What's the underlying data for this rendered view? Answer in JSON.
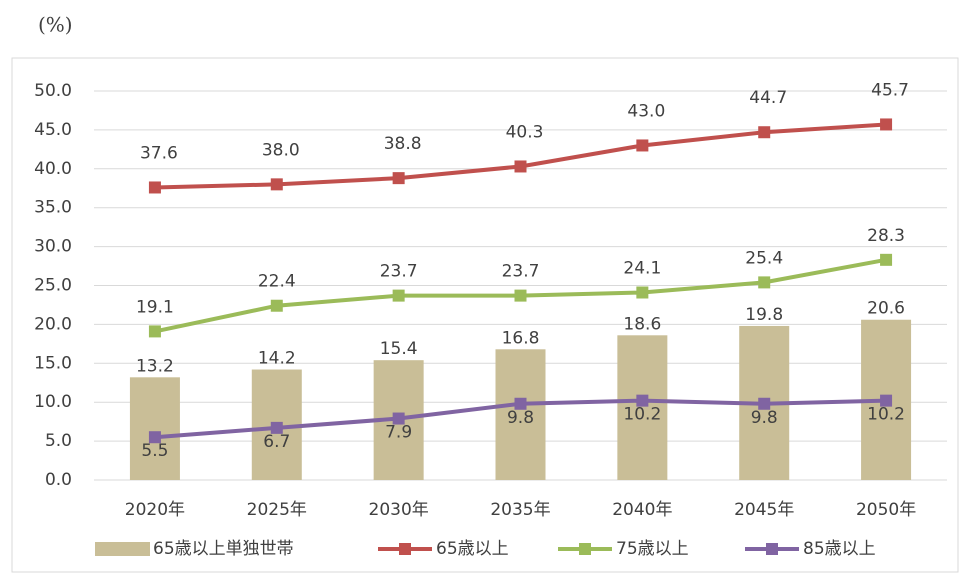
{
  "chart_data": {
    "type": "combo",
    "y_label": "(%)",
    "categories": [
      "2020年",
      "2025年",
      "2030年",
      "2035年",
      "2040年",
      "2045年",
      "2050年"
    ],
    "ylim": [
      0,
      50
    ],
    "yticks": [
      {
        "value": 0,
        "label": "0.0"
      },
      {
        "value": 5,
        "label": "5.0"
      },
      {
        "value": 10,
        "label": "10.0"
      },
      {
        "value": 15,
        "label": "15.0"
      },
      {
        "value": 20,
        "label": "20.0"
      },
      {
        "value": 25,
        "label": "25.0"
      },
      {
        "value": 30,
        "label": "30.0"
      },
      {
        "value": 35,
        "label": "35.0"
      },
      {
        "value": 40,
        "label": "40.0"
      },
      {
        "value": 45,
        "label": "45.0"
      },
      {
        "value": 50,
        "label": "50.0"
      }
    ],
    "grid": true,
    "series": [
      {
        "name": "65歳以上単独世帯",
        "type": "bar",
        "color": "#c9be97",
        "values": [
          13.2,
          14.2,
          15.4,
          16.8,
          18.6,
          19.8,
          20.6
        ],
        "value_labels": [
          "13.2",
          "14.2",
          "15.4",
          "16.8",
          "18.6",
          "19.8",
          "20.6"
        ]
      },
      {
        "name": "65歳以上",
        "type": "line",
        "color": "#c0504d",
        "values": [
          37.6,
          38.0,
          38.8,
          40.3,
          43.0,
          44.7,
          45.7
        ],
        "value_labels": [
          "37.6",
          "38.0",
          "38.8",
          "40.3",
          "43.0",
          "44.7",
          "45.7"
        ]
      },
      {
        "name": "75歳以上",
        "type": "line",
        "color": "#9bbb59",
        "values": [
          19.1,
          22.4,
          23.7,
          23.7,
          24.1,
          25.4,
          28.3
        ],
        "value_labels": [
          "19.1",
          "22.4",
          "23.7",
          "23.7",
          "24.1",
          "25.4",
          "28.3"
        ]
      },
      {
        "name": "85歳以上",
        "type": "line",
        "color": "#8064a2",
        "values": [
          5.5,
          6.7,
          7.9,
          9.8,
          10.2,
          9.8,
          10.2
        ],
        "value_labels": [
          "5.5",
          "6.7",
          "7.9",
          "9.8",
          "10.2",
          "9.8",
          "10.2"
        ]
      }
    ]
  }
}
